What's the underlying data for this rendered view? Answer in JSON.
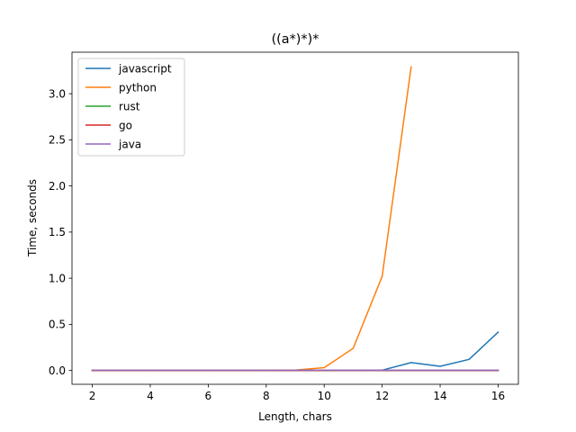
{
  "chart_data": {
    "type": "line",
    "title": "((a*)*)*",
    "xlabel": "Length, chars",
    "ylabel": "Time, seconds",
    "xlim": [
      1.3,
      16.7
    ],
    "ylim": [
      -0.15,
      3.45
    ],
    "xticks": [
      2,
      4,
      6,
      8,
      10,
      12,
      14,
      16
    ],
    "yticks": [
      0.0,
      0.5,
      1.0,
      1.5,
      2.0,
      2.5,
      3.0
    ],
    "ytick_labels": [
      "0.0",
      "0.5",
      "1.0",
      "1.5",
      "2.0",
      "2.5",
      "3.0"
    ],
    "grid": false,
    "legend_position": "top-left",
    "series": [
      {
        "name": "javascript",
        "color": "#1f77b4",
        "x": [
          2,
          3,
          4,
          5,
          6,
          7,
          8,
          9,
          10,
          11,
          12,
          13,
          14,
          15,
          16
        ],
        "y": [
          0,
          0,
          0,
          0,
          0,
          0,
          0,
          0,
          0,
          0,
          0.003,
          0.085,
          0.045,
          0.12,
          0.415
        ]
      },
      {
        "name": "python",
        "color": "#ff7f0e",
        "x": [
          2,
          3,
          4,
          5,
          6,
          7,
          8,
          9,
          10,
          11,
          12,
          13
        ],
        "y": [
          0,
          0,
          0,
          0,
          0,
          0,
          0,
          0.004,
          0.03,
          0.24,
          1.02,
          3.29
        ]
      },
      {
        "name": "rust",
        "color": "#2ca02c",
        "x": [
          2,
          3,
          4,
          5,
          6,
          7,
          8,
          9,
          10,
          11,
          12,
          13,
          14,
          15,
          16
        ],
        "y": [
          0,
          0,
          0,
          0,
          0,
          0,
          0,
          0,
          0,
          0,
          0,
          0,
          0,
          0,
          0
        ]
      },
      {
        "name": "go",
        "color": "#d62728",
        "x": [
          2,
          3,
          4,
          5,
          6,
          7,
          8,
          9,
          10,
          11,
          12,
          13,
          14,
          15,
          16
        ],
        "y": [
          0,
          0,
          0,
          0,
          0,
          0,
          0,
          0,
          0,
          0,
          0,
          0,
          0,
          0,
          0
        ]
      },
      {
        "name": "java",
        "color": "#9467bd",
        "x": [
          2,
          3,
          4,
          5,
          6,
          7,
          8,
          9,
          10,
          11,
          12,
          13,
          14,
          15,
          16
        ],
        "y": [
          0.003,
          0.003,
          0.003,
          0.003,
          0.003,
          0.003,
          0.003,
          0.003,
          0.003,
          0.003,
          0.003,
          0.003,
          0.003,
          0.003,
          0.003
        ]
      }
    ]
  }
}
